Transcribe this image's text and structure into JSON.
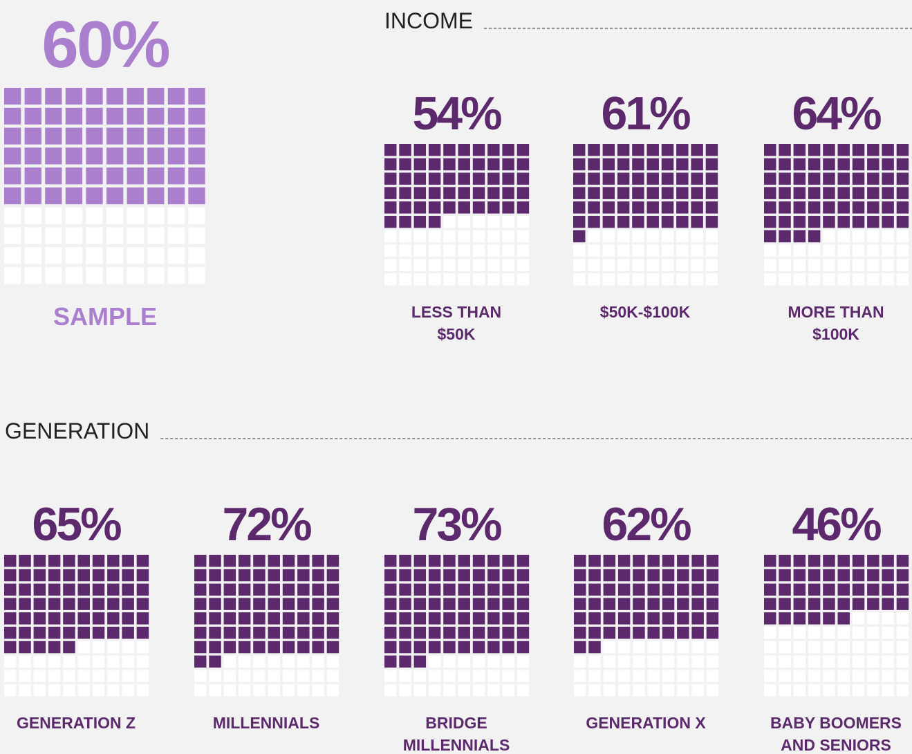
{
  "colors": {
    "sample": "#a97fce",
    "filled": "#5c2a6c",
    "empty": "#ffffff"
  },
  "sample": {
    "value": 60,
    "value_label": "60%",
    "label": [
      "SAMPLE"
    ]
  },
  "sections": [
    {
      "title": "INCOME",
      "items": [
        {
          "value": 54,
          "value_label": "54%",
          "label": [
            "LESS THAN",
            "$50K"
          ]
        },
        {
          "value": 61,
          "value_label": "61%",
          "label": [
            "$50K-$100K"
          ]
        },
        {
          "value": 64,
          "value_label": "64%",
          "label": [
            "MORE THAN",
            "$100K"
          ]
        }
      ]
    },
    {
      "title": "GENERATION",
      "items": [
        {
          "value": 65,
          "value_label": "65%",
          "label": [
            "GENERATION Z"
          ]
        },
        {
          "value": 72,
          "value_label": "72%",
          "label": [
            "MILLENNIALS"
          ]
        },
        {
          "value": 73,
          "value_label": "73%",
          "label": [
            "BRIDGE",
            "MILLENNIALS"
          ]
        },
        {
          "value": 62,
          "value_label": "62%",
          "label": [
            "GENERATION X"
          ]
        },
        {
          "value": 46,
          "value_label": "46%",
          "label": [
            "BABY BOOMERS",
            "AND SENIORS"
          ]
        }
      ]
    }
  ]
}
